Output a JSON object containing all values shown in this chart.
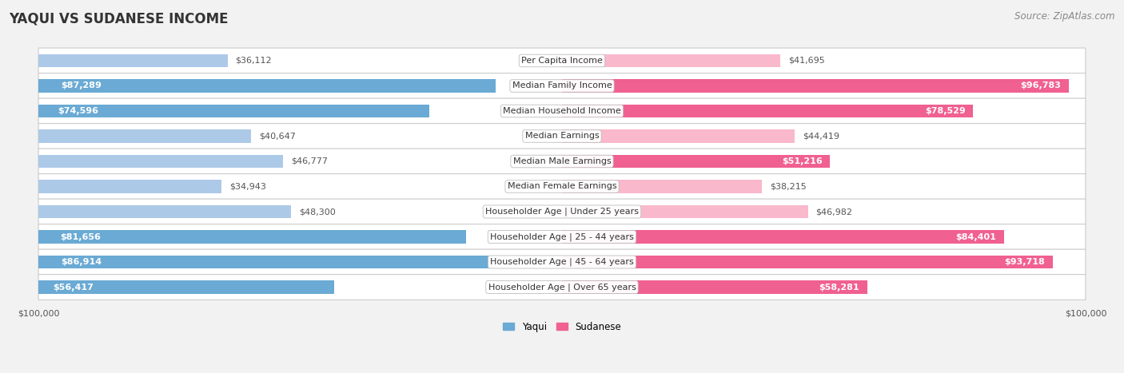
{
  "title": "YAQUI VS SUDANESE INCOME",
  "source": "Source: ZipAtlas.com",
  "categories": [
    "Per Capita Income",
    "Median Family Income",
    "Median Household Income",
    "Median Earnings",
    "Median Male Earnings",
    "Median Female Earnings",
    "Householder Age | Under 25 years",
    "Householder Age | 25 - 44 years",
    "Householder Age | 45 - 64 years",
    "Householder Age | Over 65 years"
  ],
  "yaqui_values": [
    36112,
    87289,
    74596,
    40647,
    46777,
    34943,
    48300,
    81656,
    86914,
    56417
  ],
  "sudanese_values": [
    41695,
    96783,
    78529,
    44419,
    51216,
    38215,
    46982,
    84401,
    93718,
    58281
  ],
  "yaqui_labels": [
    "$36,112",
    "$87,289",
    "$74,596",
    "$40,647",
    "$46,777",
    "$34,943",
    "$48,300",
    "$81,656",
    "$86,914",
    "$56,417"
  ],
  "sudanese_labels": [
    "$41,695",
    "$96,783",
    "$78,529",
    "$44,419",
    "$51,216",
    "$38,215",
    "$46,982",
    "$84,401",
    "$93,718",
    "$58,281"
  ],
  "max_value": 100000,
  "yaqui_color_light": "#adc9e8",
  "yaqui_color_dark": "#6aaad4",
  "sudanese_color_light": "#f9b8cb",
  "sudanese_color_dark": "#f06090",
  "bar_height": 0.52,
  "background_color": "#f2f2f2",
  "row_color": "#ffffff",
  "label_color_inside": "#ffffff",
  "label_color_outside": "#555555",
  "title_fontsize": 12,
  "source_fontsize": 8.5,
  "label_fontsize": 8,
  "category_fontsize": 8,
  "axis_fontsize": 8,
  "inside_threshold": 50000
}
